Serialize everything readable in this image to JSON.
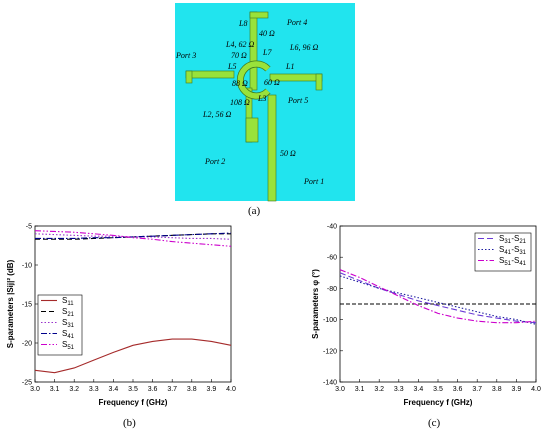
{
  "diagram": {
    "background_color": "#21e4ee",
    "trace_color": "#99e23a",
    "labels": {
      "port1": "Port 1",
      "port2": "Port 2",
      "port3": "Port 3",
      "port4": "Port 4",
      "port5": "Port 5",
      "l1": "L1",
      "l2": "L2, 56 Ω",
      "l3": "L3",
      "l4": "L4, 62 Ω",
      "l5": "L5",
      "l6": "L6, 96 Ω",
      "l7": "L7",
      "l8": "L8",
      "z_40": "40 Ω",
      "z_70": "70 Ω",
      "z_88": "88 Ω",
      "z_60": "60 Ω",
      "z_108": "108 Ω",
      "z_50": "50 Ω"
    }
  },
  "captions": {
    "a": "(a)",
    "b": "(b)",
    "c": "(c)"
  },
  "chart_data": [
    {
      "type": "line",
      "xlabel": "Frequency f (GHz)",
      "ylabel": "S-parameters |Sij|² (dB)",
      "xlim": [
        3.0,
        4.0
      ],
      "ylim": [
        -25,
        -5
      ],
      "xticks": [
        "3.0",
        "3.1",
        "3.2",
        "3.3",
        "3.4",
        "3.5",
        "3.6",
        "3.7",
        "3.8",
        "3.9",
        "4.0"
      ],
      "yticks": [
        "-5",
        "-10",
        "-15",
        "-20",
        "-25"
      ],
      "ytick_values": [
        -5,
        -10,
        -15,
        -20,
        -25
      ],
      "legend_position": "bottom-left",
      "grid": false,
      "x": [
        3.0,
        3.1,
        3.2,
        3.3,
        3.4,
        3.5,
        3.6,
        3.7,
        3.8,
        3.9,
        4.0
      ],
      "series": [
        {
          "name": "S11",
          "color": "#a52a2a",
          "dash": "",
          "values": [
            -23.5,
            -23.8,
            -23.2,
            -22.2,
            -21.2,
            -20.3,
            -19.8,
            -19.5,
            -19.5,
            -19.8,
            -20.3
          ]
        },
        {
          "name": "S21",
          "color": "#000000",
          "dash": "5,3",
          "values": [
            -6.7,
            -6.7,
            -6.7,
            -6.6,
            -6.5,
            -6.4,
            -6.3,
            -6.2,
            -6.1,
            -6.0,
            -6.0
          ]
        },
        {
          "name": "S31",
          "color": "#9932cc",
          "dash": "1.5,2",
          "values": [
            -6.0,
            -6.1,
            -6.2,
            -6.3,
            -6.3,
            -6.4,
            -6.4,
            -6.5,
            -6.6,
            -6.6,
            -6.7
          ]
        },
        {
          "name": "S41",
          "color": "#00008b",
          "dash": "6,2,1.5,2",
          "values": [
            -6.6,
            -6.6,
            -6.6,
            -6.5,
            -6.5,
            -6.4,
            -6.3,
            -6.2,
            -6.1,
            -6.0,
            -5.9
          ]
        },
        {
          "name": "S51",
          "color": "#cc00cc",
          "dash": "6,2,1.5,2,1.5,2",
          "values": [
            -5.6,
            -5.7,
            -5.8,
            -6.0,
            -6.2,
            -6.5,
            -6.7,
            -7.0,
            -7.2,
            -7.4,
            -7.6
          ]
        }
      ]
    },
    {
      "type": "line",
      "xlabel": "Frequency f (GHz)",
      "ylabel": "S-parameters φ (°)",
      "xlim": [
        3.0,
        4.0
      ],
      "ylim": [
        -140,
        -40
      ],
      "xticks": [
        "3.0",
        "3.1",
        "3.2",
        "3.3",
        "3.4",
        "3.5",
        "3.6",
        "3.7",
        "3.8",
        "3.9",
        "4.0"
      ],
      "yticks": [
        "-40",
        "-60",
        "-80",
        "-100",
        "-120",
        "-140"
      ],
      "ytick_values": [
        -40,
        -60,
        -80,
        -100,
        -120,
        -140
      ],
      "legend_position": "top-right",
      "grid": false,
      "reference_line": -90,
      "x": [
        3.0,
        3.1,
        3.2,
        3.3,
        3.4,
        3.5,
        3.6,
        3.7,
        3.8,
        3.9,
        4.0
      ],
      "series": [
        {
          "name": "S31-S21",
          "color": "#6a3ad6",
          "dash": "6,3",
          "values": [
            -70,
            -75,
            -80,
            -84,
            -88,
            -91,
            -94,
            -97,
            -99,
            -101,
            -102
          ]
        },
        {
          "name": "S41-S31",
          "color": "#1e1ea0",
          "dash": "1.5,2",
          "values": [
            -72,
            -76,
            -80,
            -83,
            -86,
            -89,
            -92,
            -95,
            -98,
            -100,
            -103
          ]
        },
        {
          "name": "S51-S41",
          "color": "#cc00cc",
          "dash": "6,2,1.5,2",
          "values": [
            -68,
            -73,
            -79,
            -85,
            -91,
            -96,
            -99,
            -101,
            -102,
            -102,
            -101
          ]
        }
      ]
    }
  ]
}
